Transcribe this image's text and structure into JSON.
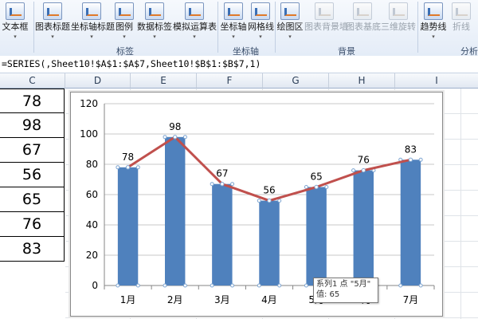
{
  "ribbon": {
    "buttons": [
      {
        "label": "文本框",
        "has_menu": true,
        "enabled": true
      },
      {
        "label": "图表标题",
        "has_menu": true,
        "enabled": true
      },
      {
        "label": "坐标轴标题",
        "has_menu": true,
        "enabled": true
      },
      {
        "label": "图例",
        "has_menu": true,
        "enabled": true
      },
      {
        "label": "数据标签",
        "has_menu": true,
        "enabled": true
      },
      {
        "label": "模拟运算表",
        "has_menu": true,
        "enabled": true
      },
      {
        "label": "坐标轴",
        "has_menu": true,
        "enabled": true
      },
      {
        "label": "网格线",
        "has_menu": true,
        "enabled": true
      },
      {
        "label": "绘图区",
        "has_menu": true,
        "enabled": true
      },
      {
        "label": "图表背景墙",
        "has_menu": false,
        "enabled": false
      },
      {
        "label": "图表基底",
        "has_menu": false,
        "enabled": false
      },
      {
        "label": "三维旋转",
        "has_menu": false,
        "enabled": false
      },
      {
        "label": "趋势线",
        "has_menu": true,
        "enabled": true
      },
      {
        "label": "折线",
        "has_menu": false,
        "enabled": false
      }
    ],
    "groups": [
      "标签",
      "坐标轴",
      "背景",
      "分析"
    ],
    "arrow_glyph": "▾"
  },
  "formula_bar": {
    "text": "=SERIES(,Sheet10!$A$1:$A$7,Sheet10!$B$1:$B$7,1)"
  },
  "sheet": {
    "columns": [
      "C",
      "D",
      "E",
      "F",
      "G",
      "H",
      "I"
    ],
    "column_c_values": [
      "78",
      "98",
      "67",
      "56",
      "65",
      "76",
      "83"
    ]
  },
  "chart_data": {
    "type": "bar",
    "categories": [
      "1月",
      "2月",
      "3月",
      "4月",
      "5月",
      "6月",
      "7月"
    ],
    "series": [
      {
        "values": [
          78,
          98,
          67,
          56,
          65,
          76,
          83
        ],
        "color": "#4f81bd",
        "render": "bar"
      },
      {
        "values": [
          78,
          98,
          67,
          56,
          65,
          76,
          83
        ],
        "color": "#c0504d",
        "render": "line"
      }
    ],
    "data_labels": [
      "78",
      "98",
      "67",
      "56",
      "65",
      "76",
      "83"
    ],
    "yticks": [
      "0",
      "20",
      "40",
      "60",
      "80",
      "100",
      "120"
    ],
    "ylim": [
      0,
      120
    ],
    "grid": true,
    "title": "",
    "xlabel": "",
    "ylabel": ""
  },
  "tooltip": {
    "line1": "系列1 点 \"5月\"",
    "line2": "值: 65"
  }
}
